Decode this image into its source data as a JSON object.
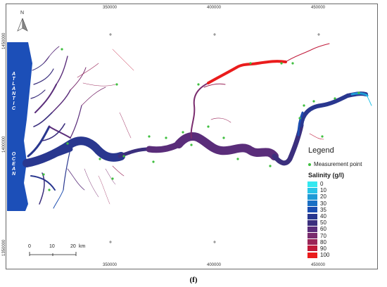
{
  "map": {
    "north_label": "N",
    "ocean_word1": "ATLANTIC",
    "ocean_word2": "OCEAN",
    "x_ticks": [
      "350000",
      "400000",
      "450000"
    ],
    "y_ticks": [
      "1450000",
      "1400000",
      "1350000"
    ],
    "bottom_x_ticks": [
      "350000",
      "400000",
      "450000"
    ],
    "scale_bar": {
      "labels": [
        "0",
        "10",
        "20"
      ],
      "unit": "km"
    },
    "figure_label": "(f)"
  },
  "legend": {
    "title": "Legend",
    "measurement_point_label": "Measurement point",
    "salinity_title": "Salinity (g/l)",
    "classes": [
      {
        "label": "0",
        "color": "#33e8f0"
      },
      {
        "label": "10",
        "color": "#29c4e8"
      },
      {
        "label": "20",
        "color": "#1f9ad6"
      },
      {
        "label": "30",
        "color": "#1a6fc4"
      },
      {
        "label": "35",
        "color": "#1c4db0"
      },
      {
        "label": "40",
        "color": "#29378f"
      },
      {
        "label": "50",
        "color": "#3b2f7d"
      },
      {
        "label": "60",
        "color": "#5a2d7a"
      },
      {
        "label": "70",
        "color": "#7a2c6e"
      },
      {
        "label": "80",
        "color": "#9a2558"
      },
      {
        "label": "90",
        "color": "#c01a3a"
      },
      {
        "label": "100",
        "color": "#ea1c1c"
      }
    ],
    "point_color": "#3fbf3f"
  },
  "colors": {
    "ocean": "#1c4fb8"
  }
}
